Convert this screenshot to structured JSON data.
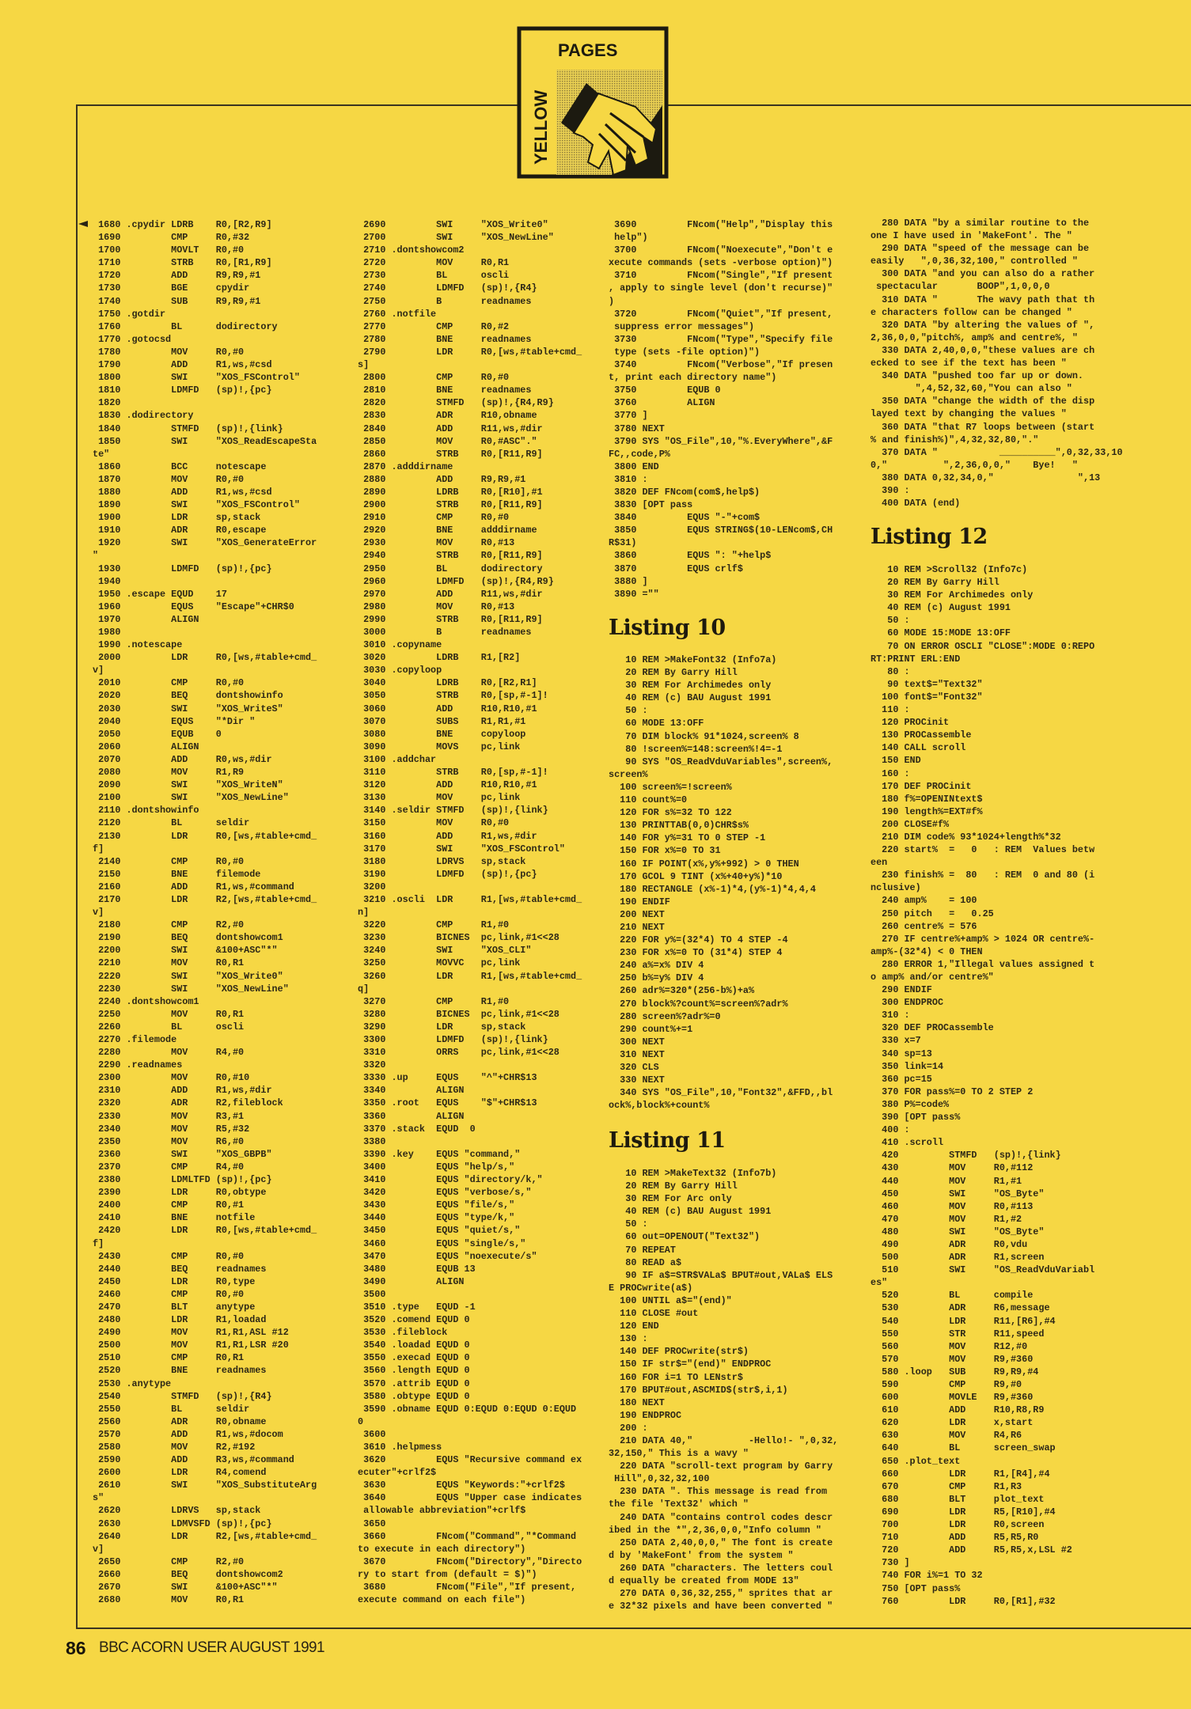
{
  "logo": {
    "word_top": "PAGES",
    "word_side": "YELLOW"
  },
  "footer": {
    "page_number": "86",
    "publication": "BBC ACORN USER AUGUST 1991"
  },
  "colors": {
    "page": "#f6d744",
    "ink": "#2a2414"
  },
  "column_1": {
    "lines": [
      " 1680 .cpydir LDRB    R0,[R2,R9]",
      " 1690         CMP     R0,#32",
      " 1700         MOVLT   R0,#0",
      " 1710         STRB    R0,[R1,R9]",
      " 1720         ADD     R9,R9,#1",
      " 1730         BGE     cpydir",
      " 1740         SUB     R9,R9,#1",
      " 1750 .gotdir",
      " 1760         BL      dodirectory",
      " 1770 .gotocsd",
      " 1780         MOV     R0,#0",
      " 1790         ADD     R1,ws,#csd",
      " 1800         SWI     \"XOS_FSControl\"",
      " 1810         LDMFD   (sp)!,{pc}",
      " 1820",
      " 1830 .dodirectory",
      " 1840         STMFD   (sp)!,{link}",
      " 1850         SWI     \"XOS_ReadEscapeSta",
      "te\"",
      " 1860         BCC     notescape",
      " 1870         MOV     R0,#0",
      " 1880         ADD     R1,ws,#csd",
      " 1890         SWI     \"XOS_FSControl\"",
      " 1900         LDR     sp,stack",
      " 1910         ADR     R0,escape",
      " 1920         SWI     \"XOS_GenerateError",
      "\"",
      " 1930         LDMFD   (sp)!,{pc}",
      " 1940",
      " 1950 .escape EQUD    17",
      " 1960         EQUS    \"Escape\"+CHR$0",
      " 1970         ALIGN",
      " 1980",
      " 1990 .notescape",
      " 2000         LDR     R0,[ws,#table+cmd_",
      "v]",
      " 2010         CMP     R0,#0",
      " 2020         BEQ     dontshowinfo",
      " 2030         SWI     \"XOS_WriteS\"",
      " 2040         EQUS    \"*Dir \"",
      " 2050         EQUB    0",
      " 2060         ALIGN",
      " 2070         ADD     R0,ws,#dir",
      " 2080         MOV     R1,R9",
      " 2090         SWI     \"XOS_WriteN\"",
      " 2100         SWI     \"XOS_NewLine\"",
      " 2110 .dontshowinfo",
      " 2120         BL      seldir",
      " 2130         LDR     R0,[ws,#table+cmd_",
      "f]",
      " 2140         CMP     R0,#0",
      " 2150         BNE     filemode",
      " 2160         ADD     R1,ws,#command",
      " 2170         LDR     R2,[ws,#table+cmd_",
      "v]",
      " 2180         CMP     R2,#0",
      " 2190         BEQ     dontshowcom1",
      " 2200         SWI     &100+ASC\"*\"",
      " 2210         MOV     R0,R1",
      " 2220         SWI     \"XOS_Write0\"",
      " 2230         SWI     \"XOS_NewLine\"",
      " 2240 .dontshowcom1",
      " 2250         MOV     R0,R1",
      " 2260         BL      oscli",
      " 2270 .filemode",
      " 2280         MOV     R4,#0",
      " 2290 .readnames",
      " 2300         MOV     R0,#10",
      " 2310         ADD     R1,ws,#dir",
      " 2320         ADR     R2,fileblock",
      " 2330         MOV     R3,#1",
      " 2340         MOV     R5,#32",
      " 2350         MOV     R6,#0",
      " 2360         SWI     \"XOS_GBPB\"",
      " 2370         CMP     R4,#0",
      " 2380         LDMLTFD (sp)!,{pc}",
      " 2390         LDR     R0,obtype",
      " 2400         CMP     R0,#1",
      " 2410         BNE     notfile",
      " 2420         LDR     R0,[ws,#table+cmd_",
      "f]",
      " 2430         CMP     R0,#0",
      " 2440         BEQ     readnames",
      " 2450         LDR     R0,type",
      " 2460         CMP     R0,#0",
      " 2470         BLT     anytype",
      " 2480         LDR     R1,loadad",
      " 2490         MOV     R1,R1,ASL #12",
      " 2500         MOV     R1,R1,LSR #20",
      " 2510         CMP     R0,R1",
      " 2520         BNE     readnames",
      " 2530 .anytype",
      " 2540         STMFD   (sp)!,{R4}",
      " 2550         BL      seldir",
      " 2560         ADR     R0,obname",
      " 2570         ADD     R1,ws,#docom",
      " 2580         MOV     R2,#192",
      " 2590         ADD     R3,ws,#command",
      " 2600         LDR     R4,comend",
      " 2610         SWI     \"XOS_SubstituteArg",
      "s\"",
      " 2620         LDRVS   sp,stack",
      " 2630         LDMVSFD (sp)!,{pc}",
      " 2640         LDR     R2,[ws,#table+cmd_",
      "v]",
      " 2650         CMP     R2,#0",
      " 2660         BEQ     dontshowcom2",
      " 2670         SWI     &100+ASC\"*\"",
      " 2680         MOV     R0,R1"
    ]
  },
  "column_2": {
    "lines": [
      " 2690         SWI     \"XOS_Write0\"",
      " 2700         SWI     \"XOS_NewLine\"",
      " 2710 .dontshowcom2",
      " 2720         MOV     R0,R1",
      " 2730         BL      oscli",
      " 2740         LDMFD   (sp)!,{R4}",
      " 2750         B       readnames",
      " 2760 .notfile",
      " 2770         CMP     R0,#2",
      " 2780         BNE     readnames",
      " 2790         LDR     R0,[ws,#table+cmd_",
      "s]",
      " 2800         CMP     R0,#0",
      " 2810         BNE     readnames",
      " 2820         STMFD   (sp)!,{R4,R9}",
      " 2830         ADR     R10,obname",
      " 2840         ADD     R11,ws,#dir",
      " 2850         MOV     R0,#ASC\".\"",
      " 2860         STRB    R0,[R11,R9]",
      " 2870 .adddirname",
      " 2880         ADD     R9,R9,#1",
      " 2890         LDRB    R0,[R10],#1",
      " 2900         STRB    R0,[R11,R9]",
      " 2910         CMP     R0,#0",
      " 2920         BNE     adddirname",
      " 2930         MOV     R0,#13",
      " 2940         STRB    R0,[R11,R9]",
      " 2950         BL      dodirectory",
      " 2960         LDMFD   (sp)!,{R4,R9}",
      " 2970         ADD     R11,ws,#dir",
      " 2980         MOV     R0,#13",
      " 2990         STRB    R0,[R11,R9]",
      " 3000         B       readnames",
      " 3010 .copyname",
      " 3020         LDRB    R1,[R2]",
      " 3030 .copyloop",
      " 3040         LDRB    R0,[R2,R1]",
      " 3050         STRB    R0,[sp,#-1]!",
      " 3060         ADD     R10,R10,#1",
      " 3070         SUBS    R1,R1,#1",
      " 3080         BNE     copyloop",
      " 3090         MOVS    pc,link",
      " 3100 .addchar",
      " 3110         STRB    R0,[sp,#-1]!",
      " 3120         ADD     R10,R10,#1",
      " 3130         MOV     pc,link",
      " 3140 .seldir STMFD   (sp)!,{link}",
      " 3150         MOV     R0,#0",
      " 3160         ADD     R1,ws,#dir",
      " 3170         SWI     \"XOS_FSControl\"",
      " 3180         LDRVS   sp,stack",
      " 3190         LDMFD   (sp)!,{pc}",
      " 3200",
      " 3210 .oscli  LDR     R1,[ws,#table+cmd_",
      "n]",
      " 3220         CMP     R1,#0",
      " 3230         BICNES  pc,link,#1<<28",
      " 3240         SWI     \"XOS_CLI\"",
      " 3250         MOVVC   pc,link",
      " 3260         LDR     R1,[ws,#table+cmd_",
      "q]",
      " 3270         CMP     R1,#0",
      " 3280         BICNES  pc,link,#1<<28",
      " 3290         LDR     sp,stack",
      " 3300         LDMFD   (sp)!,{link}",
      " 3310         ORRS    pc,link,#1<<28",
      " 3320",
      " 3330 .up     EQUS    \"^\"+CHR$13",
      " 3340         ALIGN",
      " 3350 .root   EQUS    \"$\"+CHR$13",
      " 3360         ALIGN",
      " 3370 .stack  EQUD  0",
      " 3380",
      " 3390 .key    EQUS \"command,\"",
      " 3400         EQUS \"help/s,\"",
      " 3410         EQUS \"directory/k,\"",
      " 3420         EQUS \"verbose/s,\"",
      " 3430         EQUS \"file/s,\"",
      " 3440         EQUS \"type/k,\"",
      " 3450         EQUS \"quiet/s,\"",
      " 3460         EQUS \"single/s,\"",
      " 3470         EQUS \"noexecute/s\"",
      " 3480         EQUB 13",
      " 3490         ALIGN",
      " 3500",
      " 3510 .type   EQUD -1",
      " 3520 .comend EQUD 0",
      " 3530 .fileblock",
      " 3540 .loadad EQUD 0",
      " 3550 .execad EQUD 0",
      " 3560 .length EQUD 0",
      " 3570 .attrib EQUD 0",
      " 3580 .obtype EQUD 0",
      " 3590 .obname EQUD 0:EQUD 0:EQUD 0:EQUD",
      "0",
      " 3600",
      " 3610 .helpmess",
      " 3620         EQUS \"Recursive command ex",
      "ecuter\"+crlf2$",
      " 3630         EQUS \"Keywords:\"+crlf2$",
      " 3640         EQUS \"Upper case indicates",
      " allowable abbreviation\"+crlf$",
      " 3650",
      " 3660         FNcom(\"Command\",\"*Command",
      "to execute in each directory\")",
      " 3670         FNcom(\"Directory\",\"Directo",
      "ry to start from (default = $)\")",
      " 3680         FNcom(\"File\",\"If present,",
      "execute command on each file\")"
    ]
  },
  "column_3": {
    "lines": [
      " 3690         FNcom(\"Help\",\"Display this",
      " help\")",
      " 3700         FNcom(\"Noexecute\",\"Don't e",
      "xecute commands (sets -verbose option)\")",
      " 3710         FNcom(\"Single\",\"If present",
      ", apply to single level (don't recurse)\"",
      ")",
      " 3720         FNcom(\"Quiet\",\"If present,",
      " suppress error messages\")",
      " 3730         FNcom(\"Type\",\"Specify file",
      " type (sets -file option)\")",
      " 3740         FNcom(\"Verbose\",\"If presen",
      "t, print each directory name\")",
      " 3750         EQUB 0",
      " 3760         ALIGN",
      " 3770 ]",
      " 3780 NEXT",
      " 3790 SYS \"OS_File\",10,\"%.EveryWhere\",&F",
      "FC,,code,P%",
      " 3800 END",
      " 3810 :",
      " 3820 DEF FNcom(com$,help$)",
      " 3830 [OPT pass",
      " 3840         EQUS \"-\"+com$",
      " 3850         EQUS STRING$(10-LENcom$,CH",
      "R$31)",
      " 3860         EQUS \": \"+help$",
      " 3870         EQUS crlf$",
      " 3880 ]",
      " 3890 =\"\""
    ],
    "listing_10": {
      "title": "Listing 10",
      "lines": [
        "   10 REM >MakeFont32 (Info7a)",
        "   20 REM By Garry Hill",
        "   30 REM For Archimedes only",
        "   40 REM (c) BAU August 1991",
        "   50 :",
        "   60 MODE 13:OFF",
        "   70 DIM block% 91*1024,screen% 8",
        "   80 !screen%=148:screen%!4=-1",
        "   90 SYS \"OS_ReadVduVariables\",screen%,",
        "screen%",
        "  100 screen%=!screen%",
        "  110 count%=0",
        "  120 FOR s%=32 TO 122",
        "  130 PRINTTAB(0,0)CHR$s%",
        "  140 FOR y%=31 TO 0 STEP -1",
        "  150 FOR x%=0 TO 31",
        "  160 IF POINT(x%,y%+992) > 0 THEN",
        "  170 GCOL 9 TINT (x%+40+y%)*10",
        "  180 RECTANGLE (x%-1)*4,(y%-1)*4,4,4",
        "  190 ENDIF",
        "  200 NEXT",
        "  210 NEXT",
        "  220 FOR y%=(32*4) TO 4 STEP -4",
        "  230 FOR x%=0 TO (31*4) STEP 4",
        "  240 a%=x% DIV 4",
        "  250 b%=y% DIV 4",
        "  260 adr%=320*(256-b%)+a%",
        "  270 block%?count%=screen%?adr%",
        "  280 screen%?adr%=0",
        "  290 count%+=1",
        "  300 NEXT",
        "  310 NEXT",
        "  320 CLS",
        "  330 NEXT",
        "  340 SYS \"OS_File\",10,\"Font32\",&FFD,,bl",
        "ock%,block%+count%"
      ]
    },
    "listing_11": {
      "title": "Listing 11",
      "lines": [
        "   10 REM >MakeText32 (Info7b)",
        "   20 REM By Garry Hill",
        "   30 REM For Arc only",
        "   40 REM (c) BAU August 1991",
        "   50 :",
        "   60 out=OPENOUT(\"Text32\")",
        "   70 REPEAT",
        "   80 READ a$",
        "   90 IF a$=STR$VALa$ BPUT#out,VALa$ ELS",
        "E PROCwrite(a$)",
        "  100 UNTIL a$=\"(end)\"",
        "  110 CLOSE #out",
        "  120 END",
        "  130 :",
        "  140 DEF PROCwrite(str$)",
        "  150 IF str$=\"(end)\" ENDPROC",
        "  160 FOR i=1 TO LENstr$",
        "  170 BPUT#out,ASCMID$(str$,i,1)",
        "  180 NEXT",
        "  190 ENDPROC",
        "  200 :",
        "  210 DATA 40,\"          -Hello!- \",0,32,",
        "32,150,\" This is a wavy \"",
        "  220 DATA \"scroll-text program by Garry",
        " Hill\",0,32,32,100",
        "  230 DATA \". This message is read from",
        "the file 'Text32' which \"",
        "  240 DATA \"contains control codes descr",
        "ibed in the *\",2,36,0,0,\"Info column \"",
        "  250 DATA 2,40,0,0,\" The font is create",
        "d by 'MakeFont' from the system \"",
        "  260 DATA \"characters. The letters coul",
        "d equally be created from MODE 13\"",
        "  270 DATA 0,36,32,255,\" sprites that ar",
        "e 32*32 pixels and have been converted \""
      ]
    }
  },
  "column_4": {
    "lines": [
      "  280 DATA \"by a similar routine to the",
      "one I have used in 'MakeFont'. The \"",
      "  290 DATA \"speed of the message can be",
      "easily   \",0,36,32,100,\" controlled \"",
      "  300 DATA \"and you can also do a rather",
      " spectacular       BOOP\",1,0,0,0",
      "  310 DATA \"       The wavy path that th",
      "e characters follow can be changed \"",
      "  320 DATA \"by altering the values of \",",
      "2,36,0,0,\"pitch%, amp% and centre%, \"",
      "  330 DATA 2,40,0,0,\"these values are ch",
      "ecked to see if the text has been \"",
      "  340 DATA \"pushed too far up or down.",
      "        \",4,52,32,60,\"You can also \"",
      "  350 DATA \"change the width of the disp",
      "layed text by changing the values \"",
      "  360 DATA \"that R7 loops between (start",
      "% and finish%)\",4,32,32,80,\".\"",
      "  370 DATA \"           __________\",0,32,33,10",
      "0,\"          \",2,36,0,0,\"    Bye!   \"",
      "  380 DATA 0,32,34,0,\"               \",13",
      "  390 :",
      "  400 DATA (end)"
    ],
    "listing_12": {
      "title": "Listing 12",
      "lines": [
        "   10 REM >Scroll32 (Info7c)",
        "   20 REM By Garry Hill",
        "   30 REM For Archimedes only",
        "   40 REM (c) August 1991",
        "   50 :",
        "   60 MODE 15:MODE 13:OFF",
        "   70 ON ERROR OSCLI \"CLOSE\":MODE 0:REPO",
        "RT:PRINT ERL:END",
        "   80 :",
        "   90 text$=\"Text32\"",
        "  100 font$=\"Font32\"",
        "  110 :",
        "  120 PROCinit",
        "  130 PROCassemble",
        "  140 CALL scroll",
        "  150 END",
        "  160 :",
        "  170 DEF PROCinit",
        "  180 f%=OPENINtext$",
        "  190 length%=EXT#f%",
        "  200 CLOSE#f%",
        "  210 DIM code% 93*1024+length%*32",
        "  220 start%  =   0   : REM  Values betw",
        "een",
        "  230 finish% =  80   : REM  0 and 80 (i",
        "nclusive)",
        "  240 amp%    = 100",
        "  250 pitch   =   0.25",
        "  260 centre% = 576",
        "  270 IF centre%+amp% > 1024 OR centre%-",
        "amp%-(32*4) < 0 THEN",
        "  280 ERROR 1,\"Illegal values assigned t",
        "o amp% and/or centre%\"",
        "  290 ENDIF",
        "  300 ENDPROC",
        "  310 :",
        "  320 DEF PROCassemble",
        "  330 x=7",
        "  340 sp=13",
        "  350 link=14",
        "  360 pc=15",
        "  370 FOR pass%=0 TO 2 STEP 2",
        "  380 P%=code%",
        "  390 [OPT pass%",
        "  400 :",
        "  410 .scroll",
        "  420         STMFD   (sp)!,{link}",
        "  430         MOV     R0,#112",
        "  440         MOV     R1,#1",
        "  450         SWI     \"OS_Byte\"",
        "  460         MOV     R0,#113",
        "  470         MOV     R1,#2",
        "  480         SWI     \"OS_Byte\"",
        "  490         ADR     R0,vdu",
        "  500         ADR     R1,screen",
        "  510         SWI     \"OS_ReadVduVariabl",
        "es\"",
        "  520         BL      compile",
        "  530         ADR     R6,message",
        "  540         LDR     R11,[R6],#4",
        "  550         STR     R11,speed",
        "  560         MOV     R12,#0",
        "  570         MOV     R9,#360",
        "  580 .loop   SUB     R9,R9,#4",
        "  590         CMP     R9,#0",
        "  600         MOVLE   R9,#360",
        "  610         ADD     R10,R8,R9",
        "  620         LDR     x,start",
        "  630         MOV     R4,R6",
        "  640         BL      screen_swap",
        "  650 .plot_text",
        "  660         LDR     R1,[R4],#4",
        "  670         CMP     R1,R3",
        "  680         BLT     plot_text",
        "  690         LDR     R5,[R10],#4",
        "  700         LDR     R0,screen",
        "  710         ADD     R5,R5,R0",
        "  720         ADD     R5,R5,x,LSL #2",
        "  730 ]",
        "  740 FOR i%=1 TO 32",
        "  750 [OPT pass%",
        "  760         LDR     R0,[R1],#32"
      ]
    }
  }
}
